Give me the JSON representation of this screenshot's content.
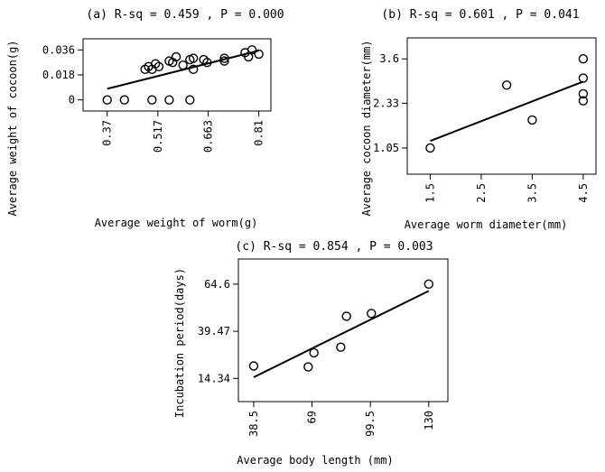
{
  "chart_data": [
    {
      "type": "scatter",
      "title": "(a) R-sq = 0.459 , P = 0.000",
      "xlabel": "Average weight of worm(g)",
      "ylabel": "Average weight of cocoon(g)",
      "xlim": [
        0.3,
        0.845
      ],
      "ylim": [
        -0.008,
        0.044
      ],
      "xticks": [
        0.37,
        0.517,
        0.663,
        0.81
      ],
      "xtick_labels": [
        "0.37",
        "0.517",
        "0.663",
        "0.81"
      ],
      "yticks": [
        0,
        0.018,
        0.036
      ],
      "ytick_labels": [
        "0",
        "0.018",
        "0.036"
      ],
      "grid": false,
      "fit_line": {
        "x": [
          0.37,
          0.81
        ],
        "y": [
          0.008,
          0.0355
        ]
      },
      "points": [
        {
          "x": 0.37,
          "y": 0.0
        },
        {
          "x": 0.42,
          "y": 0.0
        },
        {
          "x": 0.5,
          "y": 0.0
        },
        {
          "x": 0.55,
          "y": 0.0
        },
        {
          "x": 0.61,
          "y": 0.0
        },
        {
          "x": 0.48,
          "y": 0.022
        },
        {
          "x": 0.49,
          "y": 0.024
        },
        {
          "x": 0.5,
          "y": 0.022
        },
        {
          "x": 0.51,
          "y": 0.026
        },
        {
          "x": 0.52,
          "y": 0.024
        },
        {
          "x": 0.55,
          "y": 0.028
        },
        {
          "x": 0.56,
          "y": 0.027
        },
        {
          "x": 0.57,
          "y": 0.031
        },
        {
          "x": 0.59,
          "y": 0.025
        },
        {
          "x": 0.61,
          "y": 0.029
        },
        {
          "x": 0.62,
          "y": 0.03
        },
        {
          "x": 0.62,
          "y": 0.022
        },
        {
          "x": 0.65,
          "y": 0.029
        },
        {
          "x": 0.66,
          "y": 0.027
        },
        {
          "x": 0.71,
          "y": 0.03
        },
        {
          "x": 0.71,
          "y": 0.028
        },
        {
          "x": 0.77,
          "y": 0.034
        },
        {
          "x": 0.78,
          "y": 0.031
        },
        {
          "x": 0.79,
          "y": 0.036
        },
        {
          "x": 0.81,
          "y": 0.033
        }
      ]
    },
    {
      "type": "scatter",
      "title": "(b) R-sq = 0.601 , P = 0.041",
      "xlabel": "Average worm diameter(mm)",
      "ylabel": "Average cocoon diameter(mm)",
      "xlim": [
        1.05,
        4.75
      ],
      "ylim": [
        0.3,
        4.2
      ],
      "xticks": [
        1.5,
        2.5,
        3.5,
        4.5
      ],
      "xtick_labels": [
        "1.5",
        "2.5",
        "3.5",
        "4.5"
      ],
      "yticks": [
        1.05,
        2.33,
        3.6
      ],
      "ytick_labels": [
        "1.05",
        "2.33",
        "3.6"
      ],
      "grid": false,
      "fit_line": {
        "x": [
          1.5,
          4.5
        ],
        "y": [
          1.25,
          2.95
        ]
      },
      "points": [
        {
          "x": 1.5,
          "y": 1.05
        },
        {
          "x": 3.0,
          "y": 2.85
        },
        {
          "x": 3.5,
          "y": 1.85
        },
        {
          "x": 4.5,
          "y": 3.6
        },
        {
          "x": 4.5,
          "y": 3.05
        },
        {
          "x": 4.5,
          "y": 2.6
        },
        {
          "x": 4.5,
          "y": 2.4
        }
      ]
    },
    {
      "type": "scatter",
      "title": "(c) R-sq = 0.854 , P = 0.003",
      "xlabel": "Average body length (mm)",
      "ylabel": "Incubation period(days)",
      "xlim": [
        30.5,
        140.0
      ],
      "ylim": [
        2.0,
        78.0
      ],
      "xticks": [
        38.5,
        69,
        99.5,
        130
      ],
      "xtick_labels": [
        "38.5",
        "69",
        "99.5",
        "130"
      ],
      "yticks": [
        14.34,
        39.47,
        64.6
      ],
      "ytick_labels": [
        "14.34",
        "39.47",
        "64.6"
      ],
      "grid": false,
      "fit_line": {
        "x": [
          38.5,
          130
        ],
        "y": [
          15.0,
          61.0
        ]
      },
      "points": [
        {
          "x": 38.5,
          "y": 21.0
        },
        {
          "x": 67.0,
          "y": 20.5
        },
        {
          "x": 70.0,
          "y": 28.0
        },
        {
          "x": 84.0,
          "y": 31.0
        },
        {
          "x": 87.0,
          "y": 47.5
        },
        {
          "x": 100.0,
          "y": 49.0
        },
        {
          "x": 130.0,
          "y": 64.6
        }
      ]
    }
  ]
}
